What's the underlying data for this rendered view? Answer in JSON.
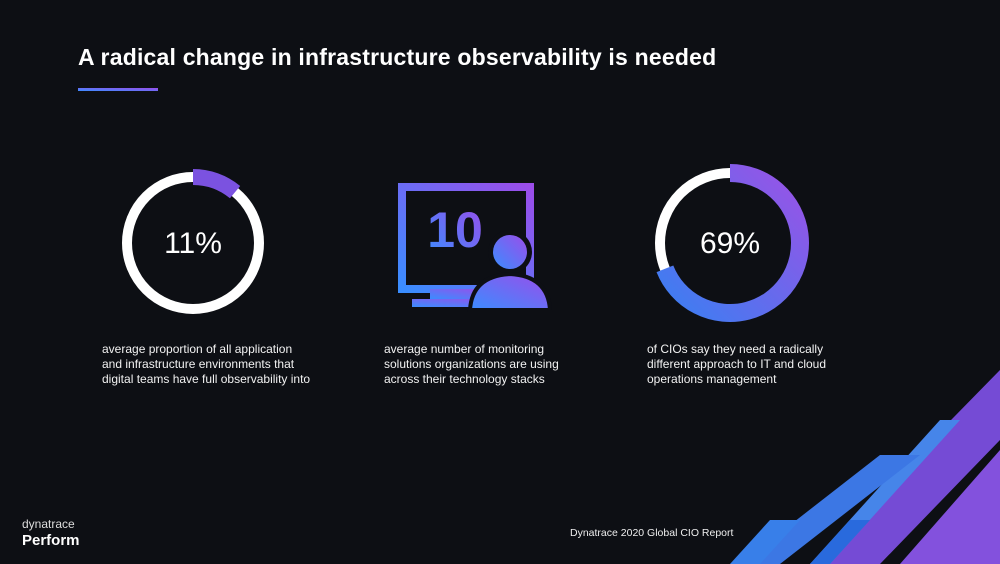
{
  "header": {
    "title": "A radical change in infrastructure observability is needed"
  },
  "stats": [
    {
      "value": 11,
      "label": "11%",
      "description": "average proportion of all application and infrastructure environments that digital teams have full observability into"
    },
    {
      "label": "10",
      "description": "average number of monitoring solutions organizations are using across their technology stacks"
    },
    {
      "value": 69,
      "label": "69%",
      "description": "of CIOs say they need a radically different approach to IT and cloud operations management"
    }
  ],
  "footer": {
    "source": "Dynatrace 2020 Global CIO Report",
    "brand": "dynatrace",
    "event": "Perform"
  }
}
